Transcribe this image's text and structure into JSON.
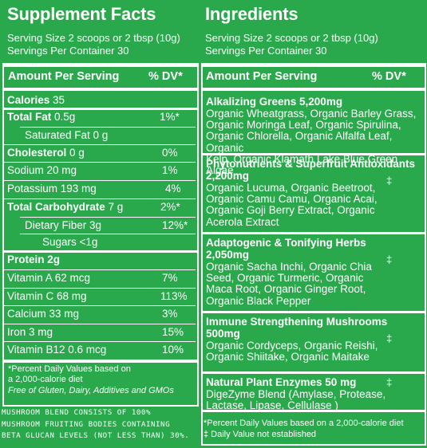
{
  "supplement": {
    "title": "Supplement Facts",
    "serving_size": "Serving Size 2 scoops or 2 tbsp (10g)",
    "servings_per_container": "Servings Per Container 30",
    "header_amount": "Amount Per  Serving",
    "header_dv": "% DV*",
    "rows": [
      {
        "bold": "Calories",
        "rest": " 35",
        "dv": ""
      },
      {
        "bold": "Total Fat",
        "rest": " 0.5g",
        "dv": "1%*"
      },
      {
        "bold": "",
        "rest": "Saturated Fat 0 g",
        "dv": ""
      },
      {
        "bold": "Cholesterol",
        "rest": " 0 g",
        "dv": "0%"
      },
      {
        "bold": "",
        "rest": "Sodium 20 mg",
        "dv": "1%"
      },
      {
        "bold": "",
        "rest": "Potassium 193 mg",
        "dv": "4%"
      },
      {
        "bold": "Total Carbohydrate",
        "rest": " 7 g",
        "dv": "2%*"
      },
      {
        "bold": "",
        "rest": "Dietary Fiber 3g",
        "dv": "12%*"
      },
      {
        "bold": "",
        "rest": "Sugars <1g",
        "dv": ""
      },
      {
        "bold": "Protein 2g",
        "rest": "",
        "dv": ""
      },
      {
        "bold": "",
        "rest": "Vitamin A 62 mcg",
        "dv": "7%"
      },
      {
        "bold": "",
        "rest": "Vitamin C 68 mg",
        "dv": "113%"
      },
      {
        "bold": "",
        "rest": "Calcium 33 mg",
        "dv": "3%"
      },
      {
        "bold": "",
        "rest": "Iron 3 mg",
        "dv": "15%"
      },
      {
        "bold": "",
        "rest": "Vitamin B12 0.6 mcg",
        "dv": "10%"
      }
    ],
    "footnote_line1": "*Percent Daily Values based on",
    "footnote_line2": "a 2,000-calorie diet",
    "free_of": "Free of Gluten, Dairy, Additives and GMOs"
  },
  "mushroom_note": "MUSHROOM BLEND CONSISTS OF 100%\nMUSHROOM FRUITING BODIES CONTAINING\nBETA GLUCAN LEVELS (NOT LESS THAN) 30%.",
  "ingredients": {
    "title": "Ingredients",
    "serving_size": "Serving Size 2 scoops or 2 tbsp (10g)",
    "servings_per_container": "Servings Per Container 30",
    "header_amount": "Amount Per Serving",
    "header_dv": "% DV*",
    "groups": [
      {
        "title": "Alkalizing Greens 5,200mg",
        "dagger": "",
        "body": "Organic Wheatgrass, Organic Barley Grass,\nOrganic Moringa Leaf, Organic Spirulina,\nOrganic Chlorella, Organic Alfalfa Leaf, Organic\nKelp, Organic Klamath Lake Blue Green Algae"
      },
      {
        "title": "Phytonutrients & Superfruit Antioxidants\n2,200mg",
        "dagger": "‡",
        "body": "Organic Lucuma, Organic Beetroot,\nOrganic Camu Camu, Organic Acai,\nOrganic Goji Berry Extract, Organic\nAcerola Extract"
      },
      {
        "title": "Adaptogenic  & Tonifying Herbs\n2,050mg",
        "dagger": "‡",
        "body": "Organic Sacha Inchi, Organic Chia\nSeed, Organic Turmeric, Organic\nMaca Root, Organic Ginger Root,\nOrganic Black Pepper"
      },
      {
        "title": "Immune Strengthening Mushrooms\n500mg",
        "dagger": "‡",
        "body": "Organic Cordyceps, Organic Reishi,\nOrganic Shiitake, Organic Maitake"
      },
      {
        "title": "Natural Plant Enzymes 50 mg",
        "dagger": "‡",
        "body": "DigeZyme Blend (Amylase, Protease,\nLactase, Lipase, Cellulase )"
      }
    ],
    "footnote_line1": "*Percent Daily Values based on a 2,000-calorie diet",
    "footnote_line2": "‡ Daily Value not established"
  }
}
